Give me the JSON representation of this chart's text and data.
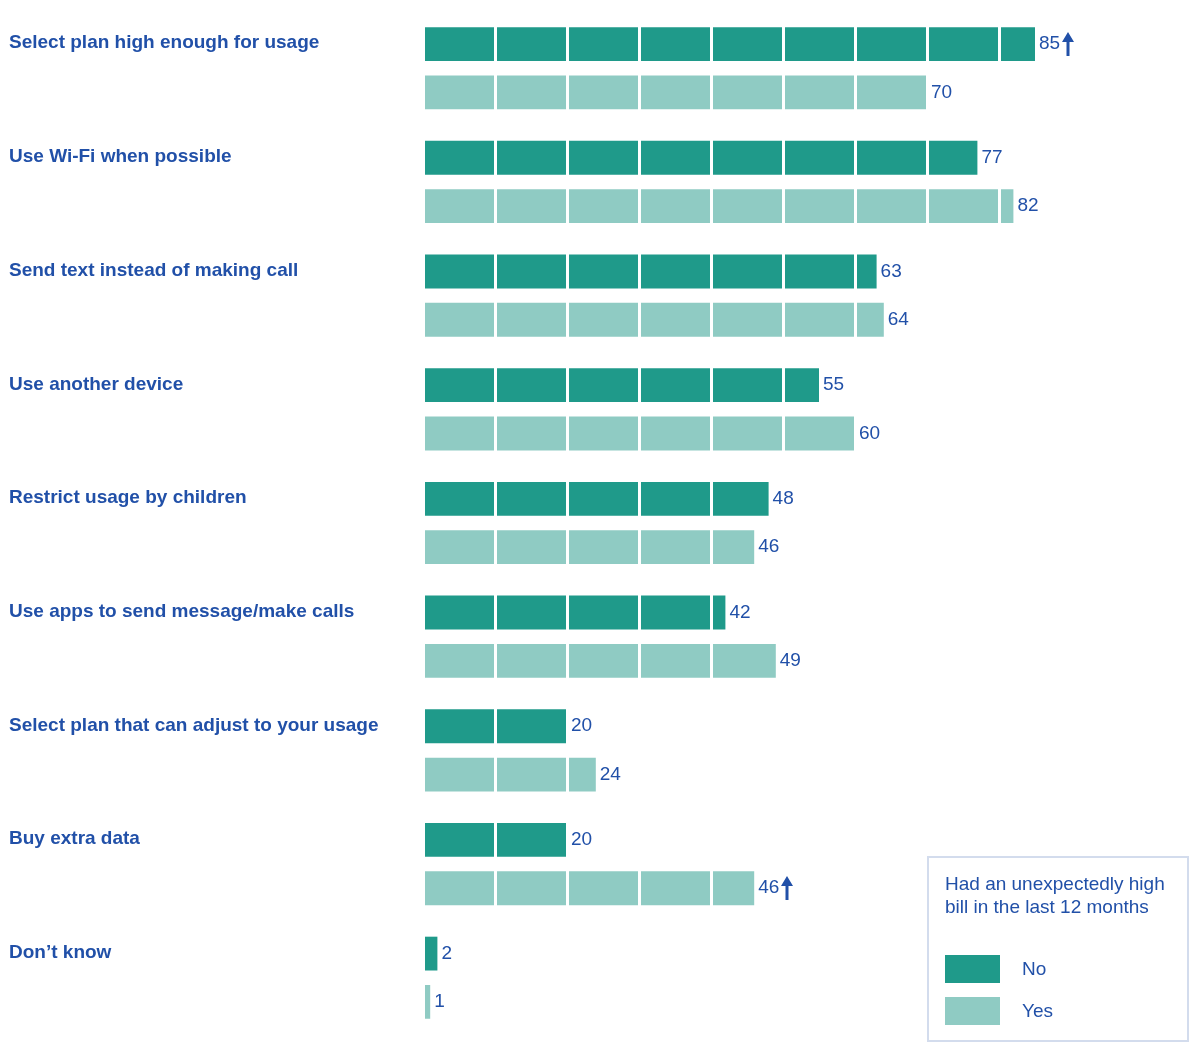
{
  "chart_data": {
    "type": "bar",
    "orientation": "horizontal",
    "categories": [
      "Select plan high enough for usage",
      "Use Wi-Fi when possible",
      "Send text instead of making call",
      "Use another device",
      "Restrict usage by children",
      "Use apps to send message/make calls",
      "Select plan that can adjust to your usage",
      "Buy extra data",
      "Don’t know"
    ],
    "series": [
      {
        "name": "No",
        "color": "#1f9a8a",
        "values": [
          85,
          77,
          63,
          55,
          48,
          42,
          20,
          20,
          2
        ]
      },
      {
        "name": "Yes",
        "color": "#8fcbc3",
        "values": [
          70,
          82,
          64,
          60,
          46,
          49,
          24,
          46,
          1
        ]
      }
    ],
    "xticks": [
      {
        "value": 0,
        "label": null
      },
      {
        "value": 10,
        "label": null
      },
      {
        "value": 20,
        "label": null
      },
      {
        "value": 30,
        "label": null
      },
      {
        "value": 40,
        "label": null
      },
      {
        "value": 50,
        "label": null
      },
      {
        "value": 60,
        "label": null
      },
      {
        "value": 70,
        "label": null
      },
      {
        "value": 80,
        "label": null
      }
    ],
    "grid": "x",
    "tick_labels": "y",
    "data_labels": true,
    "legend": "bottom right",
    "legend_title": "Had an unexpectedly high bill in the last 12 months"
  }
}
